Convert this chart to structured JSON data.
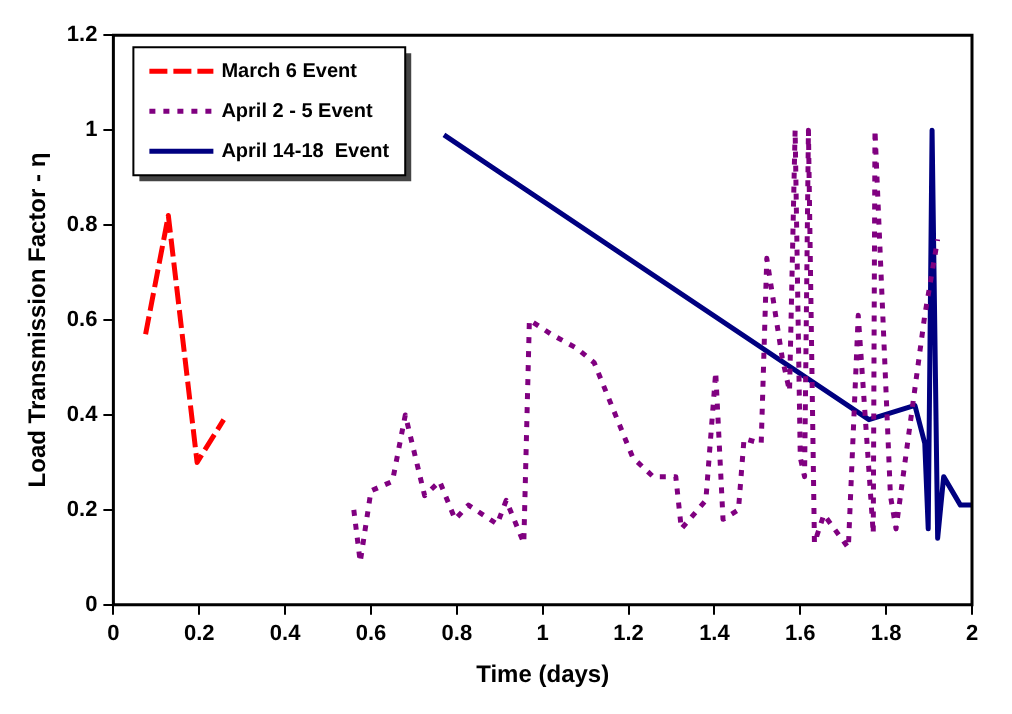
{
  "chart_data": {
    "type": "line",
    "xlabel": "Time (days)",
    "ylabel": "Load Transmission Factor - η",
    "xlim": [
      0,
      2
    ],
    "xticks": [
      0,
      0.2,
      0.4,
      0.6,
      0.8,
      1,
      1.2,
      1.4,
      1.6,
      1.8,
      2
    ],
    "ylim": [
      0,
      1.2
    ],
    "yticks": [
      0,
      0.2,
      0.4,
      0.6,
      0.8,
      1,
      1.2
    ],
    "grid": false,
    "legend": "top left",
    "marker": "none",
    "series": [
      {
        "name": "March 6 Event",
        "color": "#ff0000",
        "line_style": "dashed",
        "x": [
          0.075,
          0.128,
          0.195,
          0.257
        ],
        "values": [
          0.57,
          0.82,
          0.3,
          0.39
        ]
      },
      {
        "name": "April 2 - 5 Event",
        "color": "#800080",
        "line_style": "dotted",
        "x": [
          0.56,
          0.575,
          0.6,
          0.65,
          0.68,
          0.725,
          0.76,
          0.796,
          0.827,
          0.894,
          0.915,
          0.956,
          0.969,
          1.02,
          1.08,
          1.12,
          1.21,
          1.257,
          1.31,
          1.323,
          1.38,
          1.403,
          1.42,
          1.456,
          1.469,
          1.509,
          1.522,
          1.558,
          1.575,
          1.588,
          1.6,
          1.61,
          1.619,
          1.633,
          1.655,
          1.712,
          1.735,
          1.77,
          1.774,
          1.81,
          1.823,
          1.89,
          1.92
        ],
        "values": [
          0.2,
          0.09,
          0.24,
          0.26,
          0.4,
          0.23,
          0.26,
          0.18,
          0.21,
          0.17,
          0.22,
          0.13,
          0.6,
          0.57,
          0.54,
          0.51,
          0.31,
          0.27,
          0.27,
          0.16,
          0.22,
          0.49,
          0.18,
          0.2,
          0.35,
          0.34,
          0.73,
          0.52,
          0.45,
          1,
          0.31,
          0.27,
          1,
          0.13,
          0.19,
          0.12,
          0.61,
          0.15,
          1,
          0.23,
          0.16,
          0.61,
          0.77
        ]
      },
      {
        "name": "April 14-18  Event",
        "color": "#000080",
        "line_style": "solid",
        "x": [
          0.77,
          1.76,
          1.867,
          1.89,
          1.898,
          1.907,
          1.92,
          1.934,
          1.973,
          2
        ],
        "values": [
          0.99,
          0.39,
          0.42,
          0.34,
          0.16,
          1,
          0.14,
          0.27,
          0.21,
          0.21
        ]
      }
    ]
  }
}
